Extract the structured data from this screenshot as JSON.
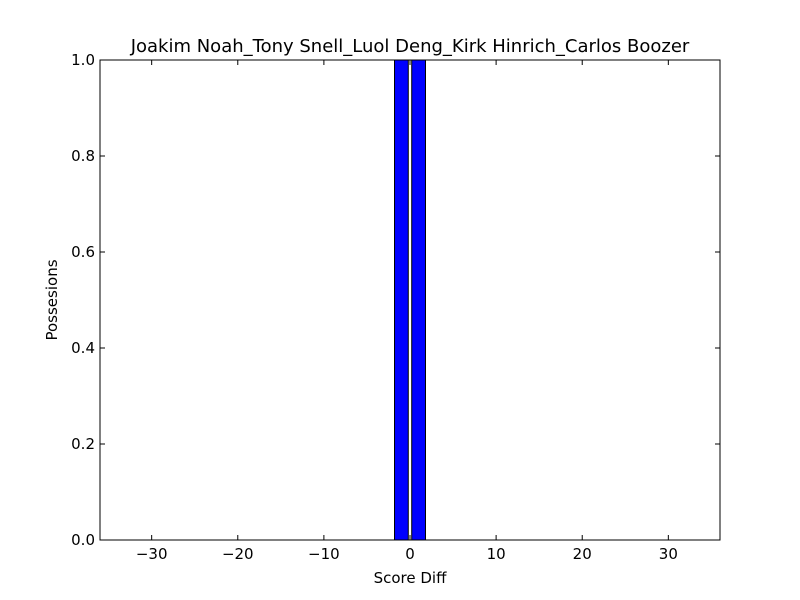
{
  "chart_data": {
    "type": "bar",
    "title": "Joakim Noah_Tony Snell_Luol Deng_Kirk Hinrich_Carlos Boozer",
    "xlabel": "Score Diff",
    "ylabel": "Possesions",
    "xlim": [
      -36,
      36
    ],
    "ylim": [
      0.0,
      1.0
    ],
    "x_ticks": [
      -30,
      -20,
      -10,
      0,
      10,
      20,
      30
    ],
    "x_tick_labels": [
      "−30",
      "−20",
      "−10",
      "0",
      "10",
      "20",
      "30"
    ],
    "y_ticks": [
      0.0,
      0.2,
      0.4,
      0.6,
      0.8,
      1.0
    ],
    "y_tick_labels": [
      "0.0",
      "0.2",
      "0.4",
      "0.6",
      "0.8",
      "1.0"
    ],
    "bar_width": 1.6,
    "bar_color": "#0000ff",
    "bars": [
      {
        "x": -1,
        "value": 1.0
      },
      {
        "x": 1,
        "value": 1.0
      }
    ],
    "grid": false,
    "legend": "none"
  }
}
